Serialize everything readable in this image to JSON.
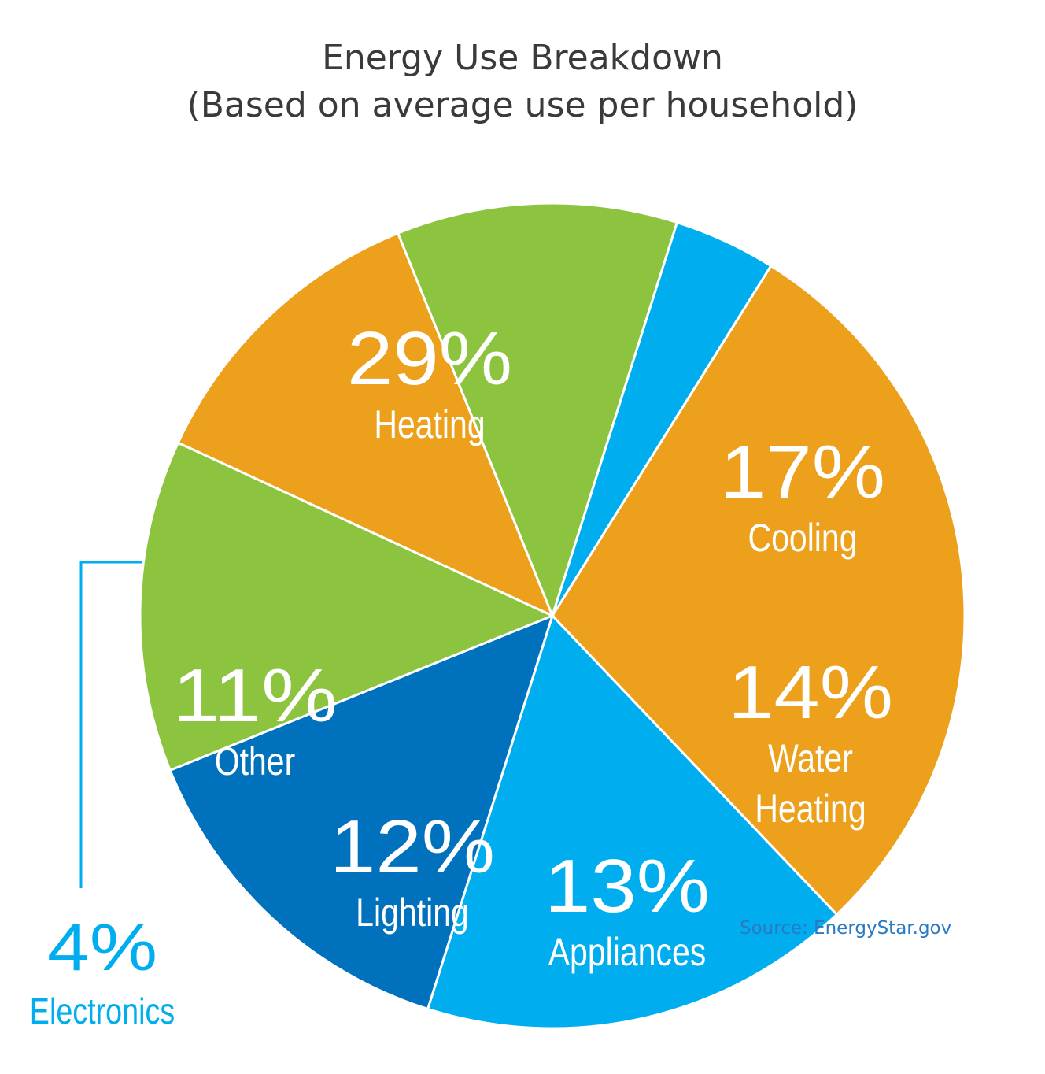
{
  "title_line1": "Energy Use Breakdown",
  "title_line2": "(Based on average use per household)",
  "source": "Source: EnergyStar.gov",
  "chart_data": {
    "type": "pie",
    "title": "Energy Use Breakdown",
    "subtitle": "(Based on average use per household)",
    "slices": [
      {
        "label": "Heating",
        "value": 29,
        "pct_label": "29%",
        "color": "#ECA01B",
        "label_lines": [
          "Heating"
        ]
      },
      {
        "label": "Cooling",
        "value": 17,
        "pct_label": "17%",
        "color": "#00AEEF",
        "label_lines": [
          "Cooling"
        ]
      },
      {
        "label": "Water Heating",
        "value": 14,
        "pct_label": "14%",
        "color": "#0071BD",
        "label_lines": [
          "Water",
          "Heating"
        ]
      },
      {
        "label": "Appliances",
        "value": 13,
        "pct_label": "13%",
        "color": "#8DC43F",
        "label_lines": [
          "Appliances"
        ]
      },
      {
        "label": "Lighting",
        "value": 12,
        "pct_label": "12%",
        "color": "#ECA01B",
        "label_lines": [
          "Lighting"
        ]
      },
      {
        "label": "Other",
        "value": 11,
        "pct_label": "11%",
        "color": "#8DC43F",
        "label_lines": [
          "Other"
        ]
      },
      {
        "label": "Electronics",
        "value": 4,
        "pct_label": "4%",
        "color": "#00AEEF",
        "label_lines": [
          "Electronics"
        ],
        "label_outside": true
      }
    ]
  }
}
